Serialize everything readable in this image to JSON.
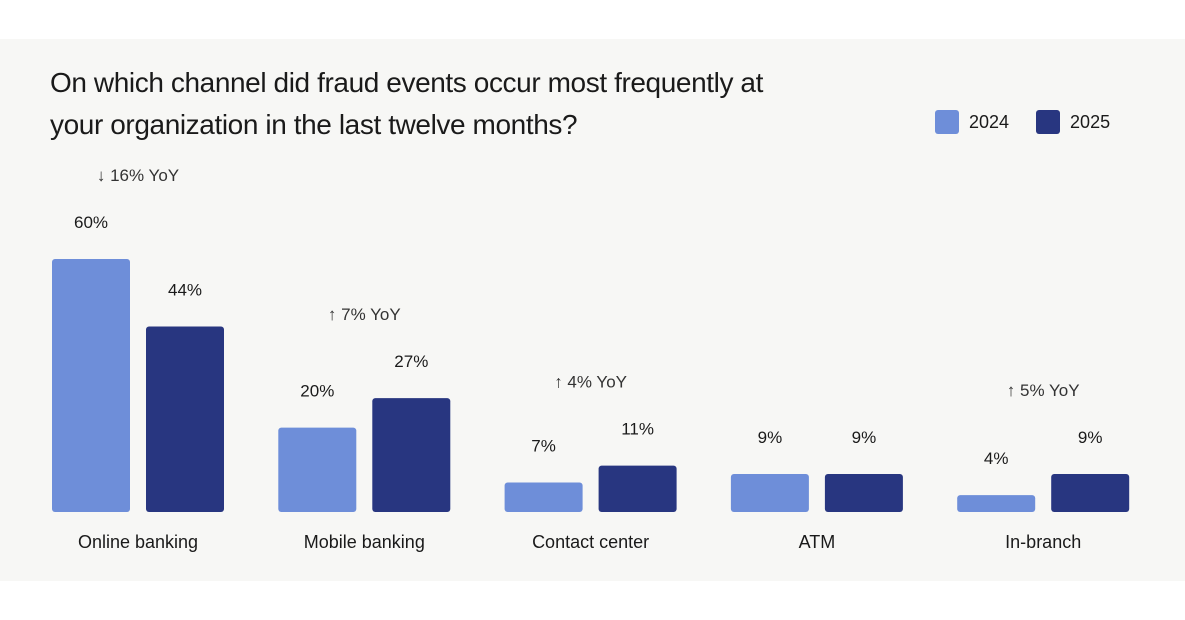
{
  "chart_data": {
    "type": "bar",
    "title": "On which channel did fraud events occur most frequently at your organization in the last twelve months?",
    "categories": [
      "Online banking",
      "Mobile banking",
      "Contact center",
      "ATM",
      "In-branch"
    ],
    "series": [
      {
        "name": "2024",
        "values": [
          60,
          20,
          7,
          9,
          4
        ],
        "labels": [
          "60%",
          "20%",
          "7%",
          "9%",
          "4%"
        ],
        "color": "#6e8ed9"
      },
      {
        "name": "2025",
        "values": [
          44,
          27,
          11,
          9,
          9
        ],
        "labels": [
          "44%",
          "27%",
          "11%",
          "9%",
          "9%"
        ],
        "color": "#283680"
      }
    ],
    "annotations": [
      "↓ 16% YoY",
      "↑ 7% YoY",
      "↑ 4% YoY",
      "",
      "↑ 5% YoY"
    ],
    "ylim": [
      0,
      60
    ],
    "legend": "top-right",
    "grid": false
  }
}
